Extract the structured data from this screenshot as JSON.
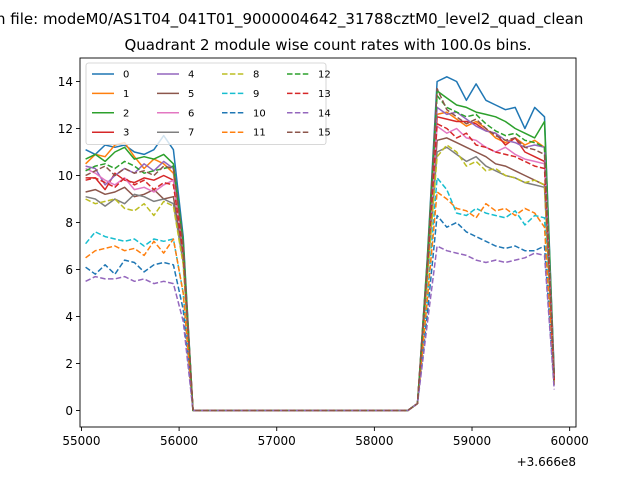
{
  "chart_data": {
    "type": "line",
    "suptitle": "n file: modeM0/AS1T04_041T01_9000004642_31788cztM0_level2_quad_clean",
    "title": "Quadrant 2 module wise count rates with 100.0s bins.",
    "xlabel": "",
    "ylabel": "",
    "x_offset_label": "+3.666e8",
    "xlim": [
      54985,
      60065
    ],
    "ylim": [
      -0.7,
      15.0
    ],
    "xticks": [
      55000,
      56000,
      57000,
      58000,
      59000,
      60000
    ],
    "xtick_labels": [
      "55000",
      "56000",
      "57000",
      "58000",
      "59000",
      "60000"
    ],
    "yticks": [
      0,
      2,
      4,
      6,
      8,
      10,
      12,
      14
    ],
    "ytick_labels": [
      "0",
      "2",
      "4",
      "6",
      "8",
      "10",
      "12",
      "14"
    ],
    "legend_position": "top-left",
    "legend_columns": 4,
    "x": [
      55042,
      55142,
      55242,
      55342,
      55442,
      55542,
      55642,
      55742,
      55842,
      55942,
      56042,
      56142,
      56242,
      56342,
      56442,
      56542,
      56642,
      56742,
      56842,
      56942,
      57042,
      57142,
      57242,
      57342,
      57442,
      57542,
      57642,
      57742,
      57842,
      57942,
      58042,
      58142,
      58242,
      58342,
      58442,
      58542,
      58642,
      58742,
      58842,
      58942,
      59042,
      59142,
      59242,
      59342,
      59442,
      59542,
      59642,
      59742,
      59842
    ],
    "series": [
      {
        "name": "0",
        "color": "#1f77b4",
        "dash": "solid",
        "values": [
          11.1,
          10.9,
          11.3,
          11.2,
          11.3,
          11.0,
          10.9,
          11.1,
          11.7,
          11.1,
          7.4,
          0,
          0,
          0,
          0,
          0,
          0,
          0,
          0,
          0,
          0,
          0,
          0,
          0,
          0,
          0,
          0,
          0,
          0,
          0,
          0,
          0,
          0,
          0,
          0.3,
          6.5,
          14.0,
          14.2,
          14.0,
          13.2,
          13.9,
          13.2,
          13.0,
          12.8,
          12.9,
          12.0,
          12.9,
          12.5,
          1.6
        ]
      },
      {
        "name": "1",
        "color": "#ff7f0e",
        "dash": "solid",
        "values": [
          10.5,
          10.9,
          10.8,
          11.3,
          11.4,
          10.8,
          10.3,
          10.7,
          10.5,
          10.1,
          7.0,
          0,
          0,
          0,
          0,
          0,
          0,
          0,
          0,
          0,
          0,
          0,
          0,
          0,
          0,
          0,
          0,
          0,
          0,
          0,
          0,
          0,
          0,
          0,
          0.3,
          6.3,
          12.6,
          12.7,
          12.4,
          12.1,
          12.3,
          12.0,
          11.6,
          11.4,
          11.6,
          11.3,
          11.5,
          11.2,
          1.3
        ]
      },
      {
        "name": "2",
        "color": "#2ca02c",
        "dash": "solid",
        "values": [
          10.7,
          10.9,
          10.6,
          11.0,
          11.2,
          10.7,
          10.8,
          10.7,
          10.9,
          10.5,
          7.2,
          0,
          0,
          0,
          0,
          0,
          0,
          0,
          0,
          0,
          0,
          0,
          0,
          0,
          0,
          0,
          0,
          0,
          0,
          0,
          0,
          0,
          0,
          0,
          0.3,
          6.4,
          13.6,
          13.3,
          13.0,
          12.9,
          12.7,
          12.6,
          12.5,
          12.3,
          12.0,
          11.8,
          11.6,
          12.3,
          1.5
        ]
      },
      {
        "name": "3",
        "color": "#d62728",
        "dash": "solid",
        "values": [
          9.9,
          9.9,
          9.4,
          10.1,
          9.8,
          9.7,
          9.9,
          9.8,
          10.0,
          9.8,
          6.8,
          0,
          0,
          0,
          0,
          0,
          0,
          0,
          0,
          0,
          0,
          0,
          0,
          0,
          0,
          0,
          0,
          0,
          0,
          0,
          0,
          0,
          0,
          0,
          0.3,
          6.0,
          12.5,
          12.4,
          12.3,
          12.3,
          12.2,
          11.9,
          11.8,
          11.3,
          11.6,
          11.0,
          10.8,
          10.6,
          1.3
        ]
      },
      {
        "name": "4",
        "color": "#9467bd",
        "dash": "solid",
        "values": [
          10.4,
          10.3,
          9.6,
          10.0,
          10.3,
          10.1,
          10.5,
          10.2,
          10.6,
          10.3,
          7.0,
          0,
          0,
          0,
          0,
          0,
          0,
          0,
          0,
          0,
          0,
          0,
          0,
          0,
          0,
          0,
          0,
          0,
          0,
          0,
          0,
          0,
          0,
          0,
          0.3,
          6.2,
          12.9,
          12.6,
          12.7,
          12.4,
          12.1,
          11.9,
          11.8,
          11.5,
          11.4,
          11.2,
          11.3,
          11.2,
          1.4
        ]
      },
      {
        "name": "5",
        "color": "#8c564b",
        "dash": "solid",
        "values": [
          9.3,
          9.4,
          9.2,
          9.3,
          9.5,
          9.1,
          9.2,
          9.4,
          9.0,
          9.1,
          6.5,
          0,
          0,
          0,
          0,
          0,
          0,
          0,
          0,
          0,
          0,
          0,
          0,
          0,
          0,
          0,
          0,
          0,
          0,
          0,
          0,
          0,
          0,
          0,
          0.3,
          5.8,
          11.5,
          11.6,
          11.4,
          11.2,
          11.0,
          10.8,
          10.5,
          10.4,
          10.2,
          10.0,
          9.8,
          9.6,
          1.2
        ]
      },
      {
        "name": "6",
        "color": "#e377c2",
        "dash": "solid",
        "values": [
          10.3,
          10.1,
          9.8,
          9.6,
          9.9,
          9.4,
          9.5,
          9.3,
          9.6,
          9.8,
          6.8,
          0,
          0,
          0,
          0,
          0,
          0,
          0,
          0,
          0,
          0,
          0,
          0,
          0,
          0,
          0,
          0,
          0,
          0,
          0,
          0,
          0,
          0,
          0,
          0.3,
          6.0,
          12.1,
          11.8,
          12.0,
          11.6,
          11.5,
          11.2,
          11.0,
          11.2,
          10.9,
          10.7,
          10.6,
          10.5,
          1.3
        ]
      },
      {
        "name": "7",
        "color": "#7f7f7f",
        "dash": "solid",
        "values": [
          9.1,
          9.0,
          8.7,
          9.0,
          8.8,
          9.2,
          9.1,
          8.9,
          9.0,
          8.8,
          6.3,
          0,
          0,
          0,
          0,
          0,
          0,
          0,
          0,
          0,
          0,
          0,
          0,
          0,
          0,
          0,
          0,
          0,
          0,
          0,
          0,
          0,
          0,
          0,
          0.3,
          5.7,
          11.0,
          11.2,
          10.9,
          10.6,
          10.8,
          10.4,
          10.2,
          10.0,
          9.9,
          9.7,
          9.6,
          9.5,
          1.2
        ]
      },
      {
        "name": "8",
        "color": "#bcbd22",
        "dash": "dashed",
        "values": [
          9.0,
          8.8,
          8.9,
          9.0,
          8.6,
          8.5,
          8.8,
          8.3,
          8.9,
          8.7,
          6.2,
          0,
          0,
          0,
          0,
          0,
          0,
          0,
          0,
          0,
          0,
          0,
          0,
          0,
          0,
          0,
          0,
          0,
          0,
          0,
          0,
          0,
          0,
          0,
          0.3,
          5.6,
          10.8,
          11.3,
          11.0,
          10.4,
          10.6,
          10.2,
          10.3,
          10.0,
          9.9,
          9.7,
          9.8,
          9.6,
          1.2
        ]
      },
      {
        "name": "9",
        "color": "#17becf",
        "dash": "dashed",
        "values": [
          7.1,
          7.6,
          7.4,
          7.3,
          7.2,
          7.3,
          7.0,
          7.3,
          7.2,
          7.3,
          5.0,
          0,
          0,
          0,
          0,
          0,
          0,
          0,
          0,
          0,
          0,
          0,
          0,
          0,
          0,
          0,
          0,
          0,
          0,
          0,
          0,
          0,
          0,
          0,
          0.3,
          4.8,
          9.9,
          9.4,
          8.4,
          8.3,
          8.6,
          8.4,
          8.3,
          8.2,
          8.5,
          7.9,
          8.3,
          8.2,
          1.0
        ]
      },
      {
        "name": "10",
        "color": "#1f77b4",
        "dash": "dashed",
        "values": [
          6.1,
          5.8,
          6.2,
          5.8,
          6.4,
          6.3,
          5.9,
          6.2,
          6.3,
          6.2,
          4.3,
          0,
          0,
          0,
          0,
          0,
          0,
          0,
          0,
          0,
          0,
          0,
          0,
          0,
          0,
          0,
          0,
          0,
          0,
          0,
          0,
          0,
          0,
          0,
          0.3,
          4.1,
          8.3,
          7.8,
          8.0,
          7.6,
          7.4,
          7.2,
          7.0,
          6.9,
          7.0,
          6.8,
          6.8,
          7.0,
          1.0
        ]
      },
      {
        "name": "11",
        "color": "#ff7f0e",
        "dash": "dashed",
        "values": [
          6.5,
          6.8,
          6.9,
          7.0,
          6.8,
          6.9,
          6.6,
          7.2,
          6.7,
          7.3,
          5.0,
          0,
          0,
          0,
          0,
          0,
          0,
          0,
          0,
          0,
          0,
          0,
          0,
          0,
          0,
          0,
          0,
          0,
          0,
          0,
          0,
          0,
          0,
          0,
          0.3,
          4.7,
          9.3,
          9.0,
          8.6,
          8.5,
          8.2,
          8.8,
          8.5,
          8.6,
          8.3,
          8.6,
          8.4,
          7.8,
          1.1
        ]
      },
      {
        "name": "12",
        "color": "#2ca02c",
        "dash": "dashed",
        "values": [
          10.2,
          10.4,
          10.5,
          10.3,
          10.6,
          10.4,
          10.1,
          10.2,
          10.3,
          10.4,
          7.1,
          0,
          0,
          0,
          0,
          0,
          0,
          0,
          0,
          0,
          0,
          0,
          0,
          0,
          0,
          0,
          0,
          0,
          0,
          0,
          0,
          0,
          0,
          0,
          0.3,
          6.3,
          13.4,
          12.9,
          12.7,
          12.5,
          12.6,
          12.2,
          11.9,
          11.7,
          11.8,
          11.5,
          11.4,
          11.2,
          1.4
        ]
      },
      {
        "name": "13",
        "color": "#d62728",
        "dash": "dashed",
        "values": [
          9.8,
          9.9,
          9.7,
          9.5,
          9.9,
          9.6,
          9.8,
          9.4,
          9.7,
          9.6,
          6.7,
          0,
          0,
          0,
          0,
          0,
          0,
          0,
          0,
          0,
          0,
          0,
          0,
          0,
          0,
          0,
          0,
          0,
          0,
          0,
          0,
          0,
          0,
          0,
          0.3,
          6.0,
          12.2,
          12.0,
          11.6,
          11.8,
          11.3,
          11.2,
          11.0,
          10.9,
          10.8,
          10.6,
          10.4,
          10.3,
          1.3
        ]
      },
      {
        "name": "14",
        "color": "#9467bd",
        "dash": "dashed",
        "values": [
          5.5,
          5.7,
          5.6,
          5.6,
          5.7,
          5.5,
          5.6,
          5.4,
          5.5,
          5.4,
          3.8,
          0,
          0,
          0,
          0,
          0,
          0,
          0,
          0,
          0,
          0,
          0,
          0,
          0,
          0,
          0,
          0,
          0,
          0,
          0,
          0,
          0,
          0,
          0,
          0.3,
          3.7,
          7.0,
          6.8,
          6.7,
          6.6,
          6.4,
          6.3,
          6.4,
          6.3,
          6.4,
          6.5,
          6.7,
          6.6,
          0.9
        ]
      },
      {
        "name": "15",
        "color": "#8c564b",
        "dash": "dashed",
        "values": [
          10.0,
          10.2,
          10.4,
          10.0,
          10.3,
          10.1,
          10.2,
          10.0,
          10.4,
          10.3,
          7.0,
          0,
          0,
          0,
          0,
          0,
          0,
          0,
          0,
          0,
          0,
          0,
          0,
          0,
          0,
          0,
          0,
          0,
          0,
          0,
          0,
          0,
          0,
          0,
          0.3,
          6.2,
          13.7,
          12.8,
          12.5,
          12.2,
          12.4,
          12.0,
          11.7,
          11.5,
          11.6,
          11.2,
          11.1,
          10.9,
          1.4
        ]
      }
    ]
  }
}
